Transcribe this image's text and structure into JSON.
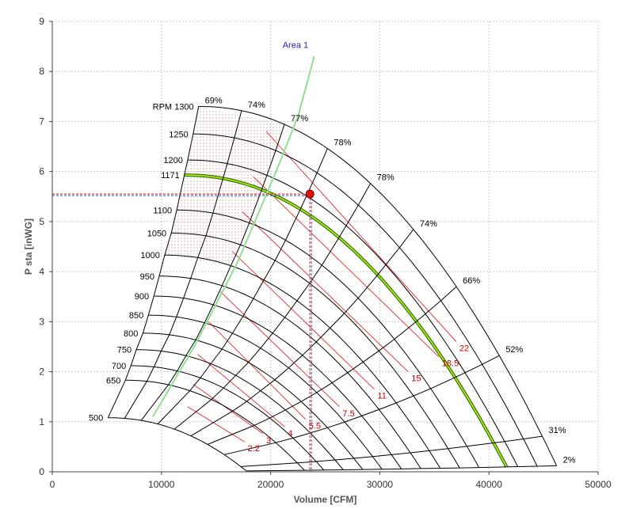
{
  "chart_data": {
    "type": "line",
    "xlabel": "Volume [CFM]",
    "ylabel": "P sta [inWG]",
    "xlim": [
      0,
      50000
    ],
    "ylim": [
      0,
      9
    ],
    "x_ticks": [
      0,
      10000,
      20000,
      30000,
      40000,
      50000
    ],
    "y_ticks": [
      0,
      1,
      2,
      3,
      4,
      5,
      6,
      7,
      8,
      9
    ],
    "grid": true,
    "rpm_prefix": "RPM",
    "rpm_curves": [
      {
        "rpm": 1300,
        "label": "1300",
        "shutoff": [
          13400,
          7.3
        ]
      },
      {
        "rpm": 1250,
        "label": "1250",
        "shutoff": [
          12900,
          6.75
        ]
      },
      {
        "rpm": 1200,
        "label": "1200",
        "shutoff": [
          12400,
          6.23
        ]
      },
      {
        "rpm": 1171,
        "label": "1171",
        "shutoff": [
          12100,
          5.93
        ]
      },
      {
        "rpm": 1100,
        "label": "1100",
        "shutoff": [
          11400,
          5.23
        ]
      },
      {
        "rpm": 1050,
        "label": "1050",
        "shutoff": [
          10900,
          4.77
        ]
      },
      {
        "rpm": 1000,
        "label": "1000",
        "shutoff": [
          10300,
          4.33
        ]
      },
      {
        "rpm": 950,
        "label": "950",
        "shutoff": [
          9800,
          3.91
        ]
      },
      {
        "rpm": 900,
        "label": "900",
        "shutoff": [
          9300,
          3.51
        ]
      },
      {
        "rpm": 850,
        "label": "850",
        "shutoff": [
          8800,
          3.13
        ]
      },
      {
        "rpm": 800,
        "label": "800",
        "shutoff": [
          8300,
          2.77
        ]
      },
      {
        "rpm": 750,
        "label": "750",
        "shutoff": [
          7700,
          2.44
        ]
      },
      {
        "rpm": 700,
        "label": "700",
        "shutoff": [
          7200,
          2.12
        ]
      },
      {
        "rpm": 650,
        "label": "650",
        "shutoff": [
          6700,
          1.83
        ]
      },
      {
        "rpm": 500,
        "label": "500",
        "shutoff": [
          5100,
          1.08
        ]
      }
    ],
    "efficiency_lines": [
      {
        "label": "69%",
        "top": [
          13400,
          7.3
        ],
        "bottom": [
          5100,
          1.08
        ]
      },
      {
        "label": "74%",
        "top": [
          17300,
          7.3
        ],
        "bottom": [
          7200,
          0.98
        ]
      },
      {
        "label": "77%",
        "top": [
          20600,
          7.1
        ],
        "bottom": [
          10000,
          0.78
        ]
      },
      {
        "label": "78%",
        "top": [
          24800,
          6.9
        ],
        "bottom": [
          13300,
          0.55
        ]
      },
      {
        "label": "78%",
        "top": [
          29300,
          6.5
        ],
        "bottom": [
          16000,
          0.3
        ]
      },
      {
        "label": "74%",
        "top": [
          33900,
          5.9
        ],
        "bottom": [
          18200,
          0.13
        ]
      },
      {
        "label": "66%",
        "top": [
          39000,
          4.9
        ],
        "bottom": [
          23000,
          0.05
        ]
      },
      {
        "label": "52%",
        "top": [
          43900,
          3.7
        ],
        "bottom": [
          27500,
          0.05
        ]
      },
      {
        "label": "31%",
        "top": [
          46200,
          1.85
        ],
        "bottom": [
          34000,
          0.05
        ]
      },
      {
        "label": "2%",
        "top": [
          46200,
          0.12
        ],
        "bottom": [
          46200,
          0.12
        ]
      }
    ],
    "power_lines": [
      {
        "label": "2.2",
        "at": [
          17600,
          0.6
        ],
        "end": [
          12400,
          1.3
        ]
      },
      {
        "label": "3",
        "at": [
          19300,
          0.76
        ],
        "end": [
          12900,
          1.75
        ]
      },
      {
        "label": "4",
        "at": [
          21300,
          0.9
        ],
        "end": [
          13300,
          2.35
        ]
      },
      {
        "label": "5.5",
        "at": [
          23200,
          1.05
        ],
        "end": [
          14300,
          3.0
        ]
      },
      {
        "label": "7.5",
        "at": [
          26300,
          1.3
        ],
        "end": [
          15400,
          3.6
        ]
      },
      {
        "label": "11",
        "at": [
          29500,
          1.65
        ],
        "end": [
          16500,
          4.4
        ]
      },
      {
        "label": "15",
        "at": [
          32600,
          2.0
        ],
        "end": [
          17400,
          5.2
        ]
      },
      {
        "label": "18.5",
        "at": [
          35400,
          2.3
        ],
        "end": [
          18400,
          5.9
        ]
      },
      {
        "label": "22",
        "at": [
          37000,
          2.6
        ],
        "end": [
          19600,
          6.8
        ]
      }
    ],
    "area_line": {
      "label": "Area 1",
      "points": [
        [
          9200,
          1.1
        ],
        [
          13000,
          2.5
        ],
        [
          17000,
          4.2
        ],
        [
          20500,
          6.0
        ],
        [
          22500,
          7.1
        ],
        [
          24000,
          8.3
        ]
      ]
    },
    "operating_point": {
      "x": 23600,
      "y": 5.55
    }
  }
}
